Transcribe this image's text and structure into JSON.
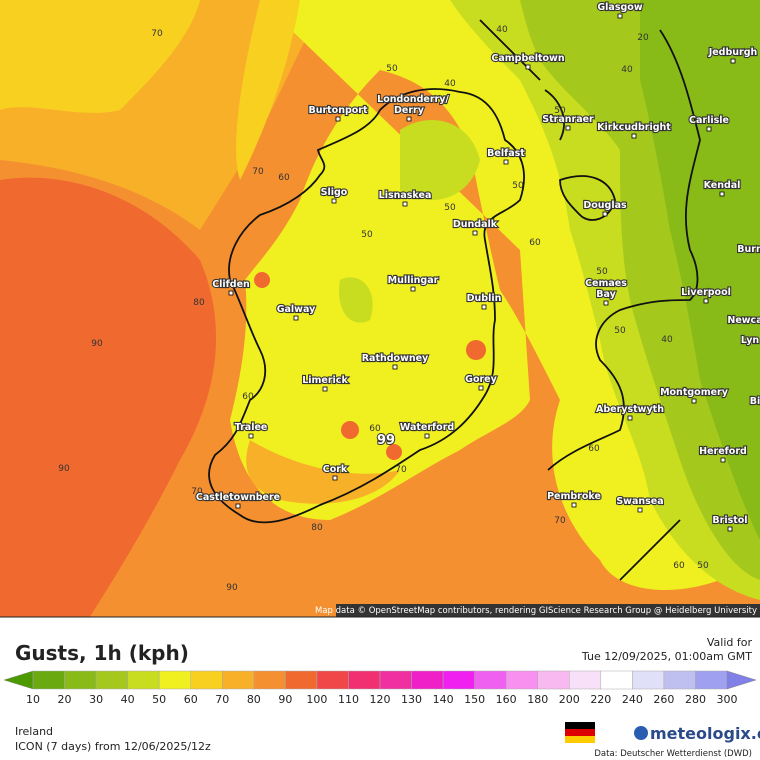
{
  "map": {
    "region_title": "Gusts, 1h (kph)",
    "valid_label": "Valid for",
    "valid_time": "Tue 12/09/2025, 01:00am GMT",
    "region": "Ireland",
    "model": "ICON (7 days)  from  12/06/2025/12z",
    "brand": "meteologix.com",
    "data_source": "Data: Deutscher Wetterdienst (DWD)",
    "attribution": "Map data © OpenStreetMap contributors, rendering GIScience Research Group @ Heidelberg University",
    "max_value": 99,
    "cities": [
      "Glasgow",
      "Campbeltown",
      "Jedburgh",
      "Burtonport",
      "Londonderry/",
      "Derry",
      "Stranraer",
      "Kirkcudbright",
      "Carlisle",
      "Belfast",
      "Kendal",
      "Sligo",
      "Lisnaskea",
      "Douglas",
      "Dundalk",
      "Clifden",
      "Mullingar",
      "Cemaes",
      "Bay",
      "Liverpool",
      "Galway",
      "Dublin",
      "Burn",
      "Newca",
      "Lyn",
      "Rathdowney",
      "Limerick",
      "Gorey",
      "Montgomery",
      "Aberystwyth",
      "Bi",
      "Tralee",
      "Waterford",
      "Hereford",
      "Cork",
      "Castletownbere",
      "Pembroke",
      "Swansea",
      "Bristol"
    ],
    "contour_labels": [
      70,
      50,
      40,
      40,
      20,
      40,
      50,
      70,
      60,
      50,
      50,
      50,
      60,
      80,
      90,
      50,
      50,
      40,
      60,
      60,
      70,
      90,
      70,
      80,
      60,
      70,
      60,
      50,
      90
    ],
    "legend": {
      "ticks": [
        10,
        20,
        30,
        40,
        50,
        60,
        70,
        80,
        90,
        100,
        110,
        120,
        130,
        140,
        150,
        160,
        180,
        200,
        220,
        240,
        260,
        280,
        300
      ],
      "colors": [
        "#4c9a00",
        "#6aaa10",
        "#88ba18",
        "#a4c81c",
        "#c8dc20",
        "#f0f020",
        "#f8d020",
        "#f8b028",
        "#f59030",
        "#f06a30",
        "#f04848",
        "#f03070",
        "#f030a0",
        "#f020c8",
        "#f020f0",
        "#f060f0",
        "#f890f0",
        "#f8b8f0",
        "#f8e0f8",
        "#ffffff",
        "#e0e0f8",
        "#c0c0f0",
        "#a0a0f0",
        "#8080e8"
      ]
    }
  }
}
